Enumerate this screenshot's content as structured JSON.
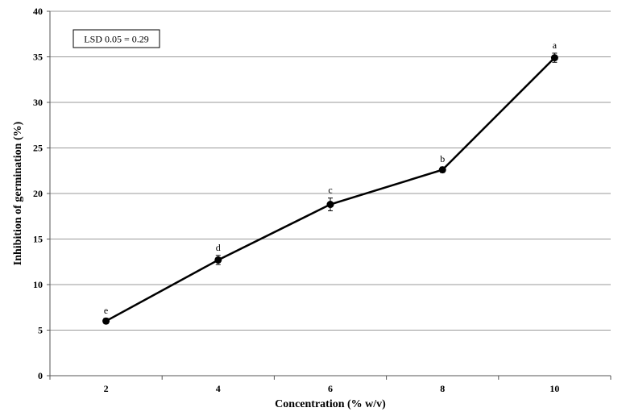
{
  "chart_data": {
    "type": "line",
    "xlabel": "Concentration (% w/v)",
    "ylabel": "Inhibition of germination (%)",
    "categories": [
      "2",
      "4",
      "6",
      "8",
      "10"
    ],
    "values": [
      6.0,
      12.7,
      18.8,
      22.6,
      34.9
    ],
    "errors": [
      0.3,
      0.5,
      0.7,
      0.3,
      0.5
    ],
    "point_labels": [
      "e",
      "d",
      "c",
      "b",
      "a"
    ],
    "ylim": [
      0,
      40
    ],
    "yticks": [
      0,
      5,
      10,
      15,
      20,
      25,
      30,
      35,
      40
    ],
    "grid": "horizontal",
    "annotation": "LSD 0.05 = 0.29",
    "series_color": "#000000",
    "marker": "filled-circle"
  }
}
